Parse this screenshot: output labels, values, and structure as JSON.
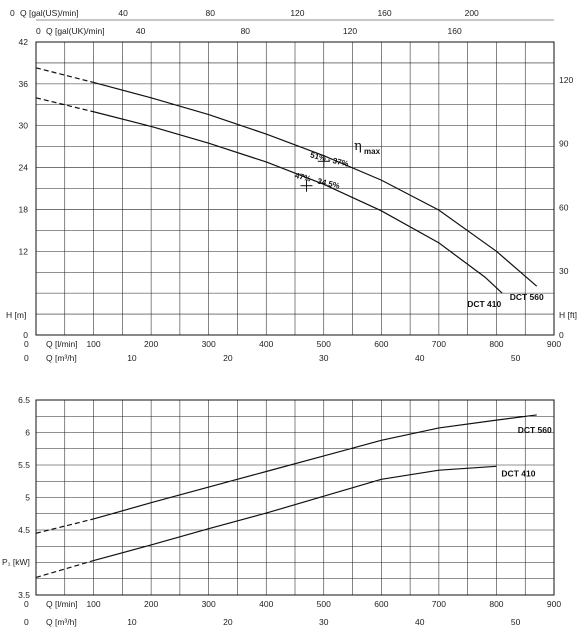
{
  "chart_data": [
    {
      "type": "line",
      "title": "",
      "xlabel": "Q [l/min]",
      "xlim": [
        0,
        900
      ],
      "x_ticks": [
        0,
        100,
        200,
        300,
        400,
        500,
        600,
        700,
        800,
        900
      ],
      "xlabel_m3h": "Q [m³/h]",
      "x_ticks_m3h": [
        0,
        10,
        20,
        30,
        40,
        50
      ],
      "xlabel_us": "Q [gal(US)/min]",
      "x_ticks_us": [
        0,
        40,
        80,
        120,
        160,
        200
      ],
      "xlabel_uk": "Q [gal(UK)/min]",
      "x_ticks_uk": [
        0,
        40,
        80,
        120,
        160
      ],
      "ylabel": "H [m]",
      "ylim": [
        0,
        42
      ],
      "y_ticks": [
        0,
        12,
        18,
        24,
        30,
        36,
        42
      ],
      "ylabel_right": "H [ft]",
      "y_ticks_right": [
        0,
        30,
        60,
        90,
        120
      ],
      "grid": true,
      "series": [
        {
          "name": "DCT 560",
          "x": [
            0,
            100,
            200,
            300,
            400,
            500,
            600,
            700,
            800,
            870
          ],
          "y": [
            38.3,
            36.2,
            34.0,
            31.6,
            28.8,
            25.7,
            22.2,
            17.9,
            12.0,
            7.0
          ]
        },
        {
          "name": "DCT 410",
          "x": [
            0,
            100,
            200,
            300,
            400,
            500,
            600,
            700,
            780,
            810
          ],
          "y": [
            34.0,
            32.0,
            29.9,
            27.5,
            24.8,
            21.6,
            17.8,
            13.2,
            8.3,
            6.0
          ]
        }
      ],
      "dashed_until_x": 100,
      "annotations": [
        {
          "text": "51% - 37%",
          "x": 500,
          "y": 24.9
        },
        {
          "text": "47% - 34.5%",
          "x": 470,
          "y": 21.4
        },
        {
          "text": "η",
          "sub": "max"
        }
      ]
    },
    {
      "type": "line",
      "title": "",
      "xlabel": "Q [l/min]",
      "xlim": [
        0,
        900
      ],
      "x_ticks": [
        0,
        100,
        200,
        300,
        400,
        500,
        600,
        700,
        800,
        900
      ],
      "xlabel_m3h": "Q [m³/h]",
      "x_ticks_m3h": [
        0,
        10,
        20,
        30,
        40,
        50
      ],
      "ylabel": "P₁ [kW]",
      "ylim": [
        3.5,
        6.5
      ],
      "y_ticks": [
        3.5,
        4.5,
        5,
        5.5,
        6,
        6.5
      ],
      "grid": true,
      "series": [
        {
          "name": "DCT 560",
          "x": [
            0,
            100,
            200,
            300,
            400,
            500,
            600,
            700,
            800,
            870
          ],
          "y": [
            4.45,
            4.67,
            4.92,
            5.16,
            5.4,
            5.64,
            5.88,
            6.07,
            6.19,
            6.27
          ]
        },
        {
          "name": "DCT 410",
          "x": [
            0,
            100,
            200,
            300,
            400,
            500,
            600,
            700,
            800
          ],
          "y": [
            3.77,
            4.03,
            4.27,
            4.52,
            4.76,
            5.02,
            5.28,
            5.42,
            5.48
          ]
        }
      ],
      "dashed_until_x": 100
    }
  ]
}
